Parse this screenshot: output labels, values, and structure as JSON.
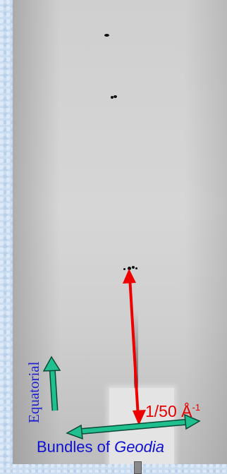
{
  "annotations": {
    "scale": {
      "text": "1/50 Å",
      "superscript": "-1"
    },
    "equatorial": "Equatorial",
    "bundles": {
      "prefix": "Bundles of ",
      "species": "Geodia"
    }
  },
  "colors": {
    "scale_arrow": "#ee0000",
    "axis_arrow": "#1fbf8f",
    "label_blue": "#1010d0",
    "frame": "#c9dcf0"
  }
}
